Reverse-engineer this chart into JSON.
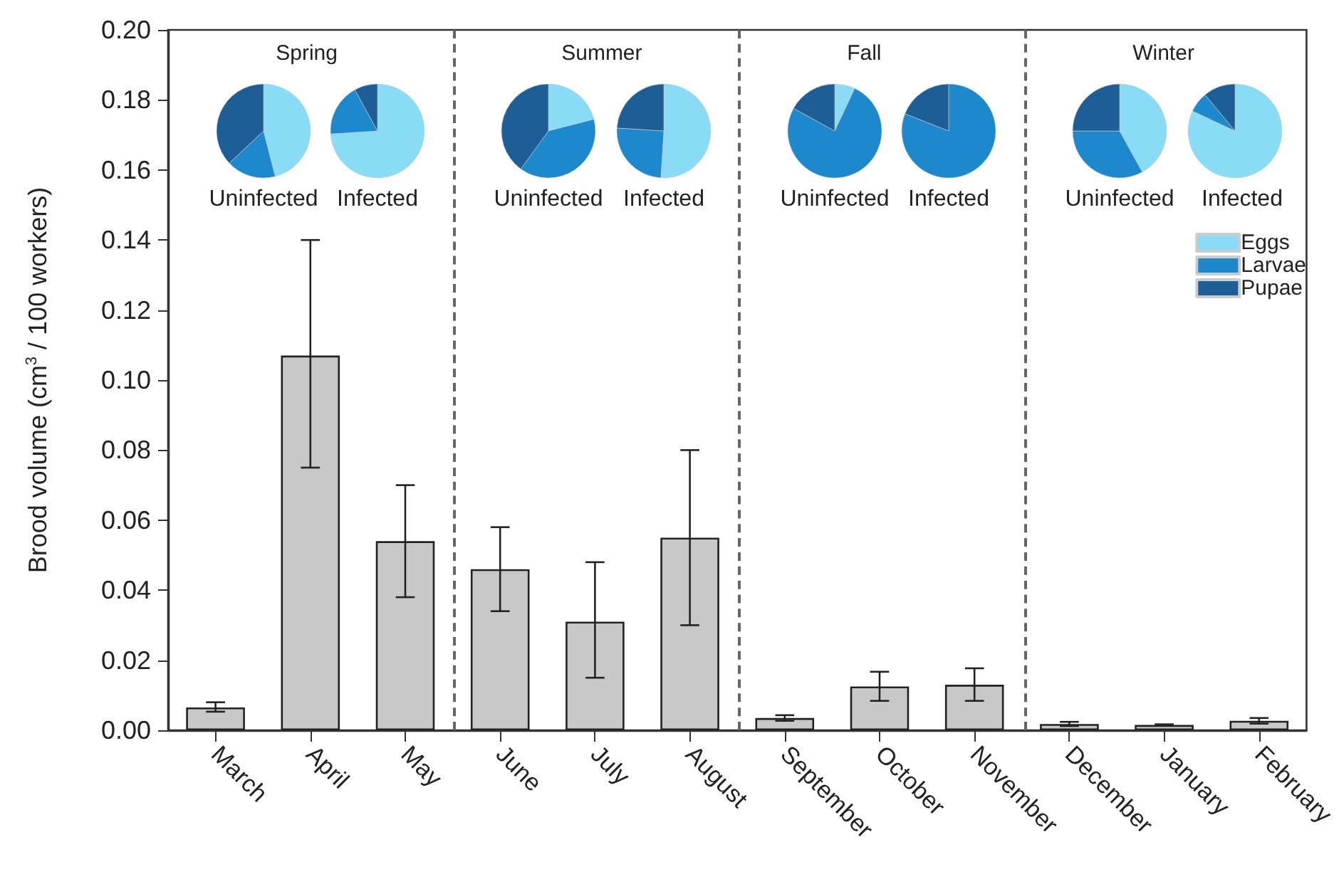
{
  "chart_data": [
    {
      "type": "bar",
      "ylabel": "Brood volume (cm$^{3}$ / 100 workers)",
      "categories": [
        "March",
        "April",
        "May",
        "June",
        "July",
        "August",
        "September",
        "October",
        "November",
        "December",
        "January",
        "February"
      ],
      "values": [
        0.0065,
        0.107,
        0.054,
        0.046,
        0.031,
        0.055,
        0.0035,
        0.0125,
        0.013,
        0.0018,
        0.0015,
        0.0027
      ],
      "errors": [
        [
          0.0053,
          0.008
        ],
        [
          0.075,
          0.14
        ],
        [
          0.038,
          0.07
        ],
        [
          0.034,
          0.058
        ],
        [
          0.015,
          0.048
        ],
        [
          0.03,
          0.08
        ],
        [
          0.0027,
          0.0043
        ],
        [
          0.0084,
          0.0167
        ],
        [
          0.0084,
          0.0177
        ],
        [
          0.0012,
          0.0024
        ],
        [
          0.0013,
          0.0017
        ],
        [
          0.0019,
          0.0035
        ]
      ],
      "color": "#c8c8c8",
      "ylim": [
        0,
        0.2
      ],
      "yticks": [
        {
          "value": 0,
          "label": "0.00"
        },
        {
          "value": 0.02,
          "label": "0.02"
        },
        {
          "value": 0.04,
          "label": "0.04"
        },
        {
          "value": 0.06,
          "label": "0.06"
        },
        {
          "value": 0.08,
          "label": "0.08"
        },
        {
          "value": 0.1,
          "label": "0.10"
        },
        {
          "value": 0.12,
          "label": "0.12"
        },
        {
          "value": 0.14,
          "label": "0.14"
        },
        {
          "value": 0.16,
          "label": "0.16"
        },
        {
          "value": 0.18,
          "label": "0.18"
        },
        {
          "value": 0.2,
          "label": "0.20"
        }
      ],
      "annotations": [
        "Spring",
        "Summer",
        "Fall",
        "Winter"
      ],
      "grid": false
    },
    {
      "type": "pie",
      "title": "Uninfected",
      "categories": [
        null,
        null,
        null
      ],
      "values": [
        46,
        17,
        37
      ],
      "colors": [
        "#8adcf6",
        "#1e88cc",
        "#1d5e96"
      ]
    },
    {
      "type": "pie",
      "title": "Infected",
      "categories": [
        null,
        null,
        null
      ],
      "values": [
        74,
        18,
        8
      ],
      "colors": [
        "#8adcf6",
        "#1e88cc",
        "#1d5e96"
      ]
    },
    {
      "type": "pie",
      "title": "Uninfected",
      "categories": [
        null,
        null,
        null
      ],
      "values": [
        21,
        39,
        40
      ],
      "colors": [
        "#8adcf6",
        "#1e88cc",
        "#1d5e96"
      ]
    },
    {
      "type": "pie",
      "title": "Infected",
      "categories": [
        null,
        null,
        null
      ],
      "values": [
        51,
        25,
        24
      ],
      "colors": [
        "#8adcf6",
        "#1e88cc",
        "#1d5e96"
      ]
    },
    {
      "type": "pie",
      "title": "Uninfected",
      "categories": [
        null,
        null,
        null
      ],
      "values": [
        7,
        76,
        17
      ],
      "colors": [
        "#8adcf6",
        "#1e88cc",
        "#1d5e96"
      ]
    },
    {
      "type": "pie",
      "title": "Infected",
      "categories": [
        null,
        null,
        null
      ],
      "values": [
        0,
        81,
        19
      ],
      "colors": [
        "#8adcf6",
        "#1e88cc",
        "#1d5e96"
      ]
    },
    {
      "type": "pie",
      "title": "Uninfected",
      "categories": [
        null,
        null,
        null
      ],
      "values": [
        42,
        33,
        25
      ],
      "colors": [
        "#8adcf6",
        "#1e88cc",
        "#1d5e96"
      ]
    },
    {
      "type": "pie",
      "title": "Infected",
      "categories": [
        "Eggs",
        "Larvae",
        "Pupae"
      ],
      "values": [
        82,
        7,
        11
      ],
      "colors": [
        "#8adcf6",
        "#1e88cc",
        "#1d5e96"
      ],
      "legend": "bottom right"
    }
  ]
}
